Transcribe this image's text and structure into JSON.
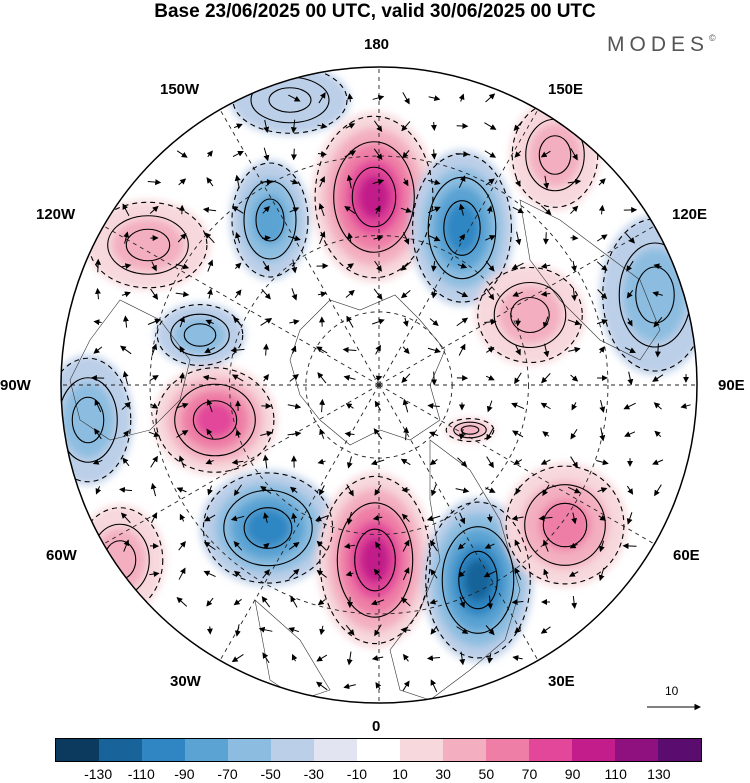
{
  "header": {
    "title": "Base 23/06/2025 00 UTC, valid 30/06/2025 00 UTC",
    "brand": "MODES",
    "brand_mark": "©"
  },
  "map": {
    "projection": "north-polar-stereographic",
    "longitude_labels": {
      "top": "180",
      "bottom": "0",
      "left": "90W",
      "right": "90E",
      "upper_left_1": "150W",
      "upper_left_2": "120W",
      "upper_right_1": "150E",
      "upper_right_2": "120E",
      "lower_left_1": "60W",
      "lower_left_2": "30W",
      "lower_right_1": "60E",
      "lower_right_2": "30E"
    },
    "reference_vector": {
      "label": "10"
    },
    "anomaly_centers": [
      {
        "sign": "positive",
        "level": 90,
        "lon_label": "180"
      },
      {
        "sign": "negative",
        "level": -70,
        "lon_label": "150E"
      },
      {
        "sign": "positive",
        "level": 70,
        "lon_label": "90W"
      },
      {
        "sign": "negative",
        "level": -70,
        "lon_label": "60W"
      },
      {
        "sign": "positive",
        "level": 90,
        "lon_label": "0"
      },
      {
        "sign": "negative",
        "level": -90,
        "lon_label": "30E"
      },
      {
        "sign": "positive",
        "level": 50,
        "lon_label": "60E"
      }
    ]
  },
  "colorbar": {
    "colors": [
      "#0c3a5e",
      "#17639a",
      "#2f86c2",
      "#5aa3d3",
      "#8cbde0",
      "#bccfe8",
      "#e2e4f2",
      "#ffffff",
      "#f7d8dc",
      "#f3afc0",
      "#ee7ea6",
      "#e2479a",
      "#c21d8a",
      "#8f117f",
      "#5a0d6e"
    ],
    "tick_labels": [
      "-130",
      "-110",
      "-90",
      "-70",
      "-50",
      "-30",
      "-10",
      "10",
      "30",
      "50",
      "70",
      "90",
      "110",
      "130"
    ]
  }
}
